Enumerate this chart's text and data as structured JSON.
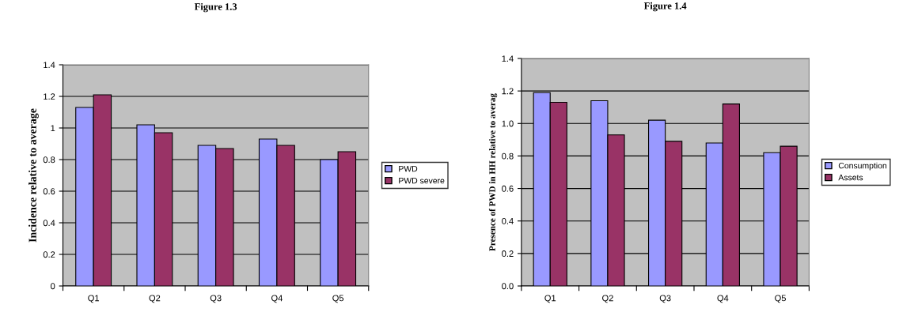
{
  "chart_data": [
    {
      "type": "bar",
      "title": "Figure 1.3",
      "ylabel": "Incidence relative to average",
      "categories": [
        "Q1",
        "Q2",
        "Q3",
        "Q4",
        "Q5"
      ],
      "series": [
        {
          "name": "PWD",
          "color": "#9999ff",
          "values": [
            1.13,
            1.02,
            0.89,
            0.93,
            0.8
          ]
        },
        {
          "name": "PWD severe",
          "color": "#993366",
          "values": [
            1.21,
            0.97,
            0.87,
            0.89,
            0.85
          ]
        }
      ],
      "ylim": [
        0,
        1.4
      ],
      "yticks": [
        0,
        0.2,
        0.4,
        0.6,
        0.8,
        1,
        1.2,
        1.4
      ],
      "grid": "y",
      "legend": "right"
    },
    {
      "type": "bar",
      "title": "Figure 1.4",
      "ylabel": "Presence of PWD in HH relative to averag",
      "categories": [
        "Q1",
        "Q2",
        "Q3",
        "Q4",
        "Q5"
      ],
      "series": [
        {
          "name": "Consumption",
          "color": "#9999ff",
          "values": [
            1.19,
            1.14,
            1.02,
            0.88,
            0.82
          ]
        },
        {
          "name": "Assets",
          "color": "#993366",
          "values": [
            1.13,
            0.93,
            0.89,
            1.12,
            0.86
          ]
        }
      ],
      "ylim": [
        0,
        1.4
      ],
      "yticks": [
        {
          "value": 0,
          "label": "0.0"
        },
        {
          "value": 0.2,
          "label": "0.2"
        },
        {
          "value": 0.4,
          "label": "0.4"
        },
        {
          "value": 0.6,
          "label": "0.6"
        },
        {
          "value": 0.8,
          "label": "0.8"
        },
        {
          "value": 1,
          "label": "1.0"
        },
        {
          "value": 1.2,
          "label": "1.2"
        },
        {
          "value": 1.4,
          "label": "1.4"
        }
      ],
      "grid": "y",
      "legend": "right"
    }
  ]
}
